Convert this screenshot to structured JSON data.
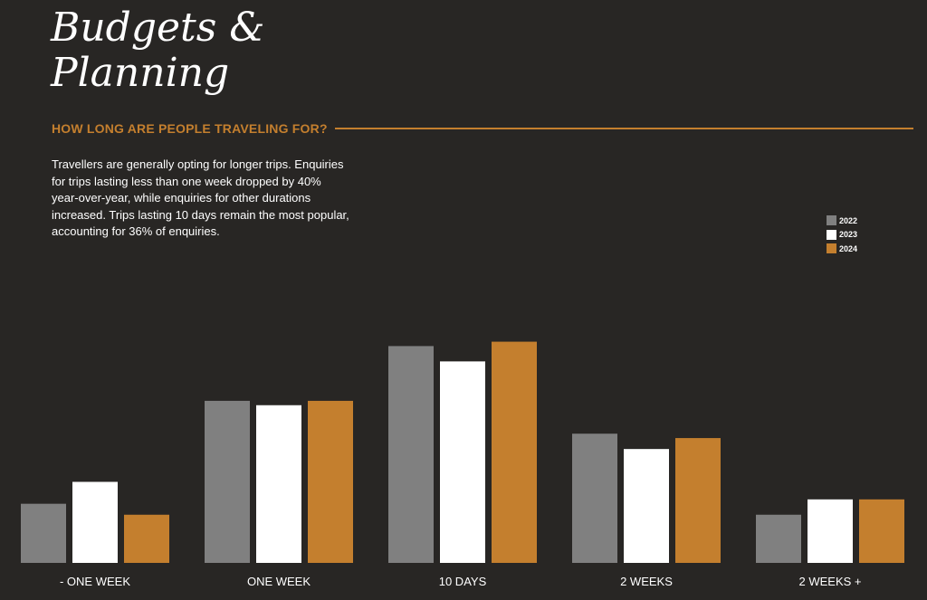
{
  "header": {
    "title_line1": "Budgets &",
    "title_line2": "Planning",
    "section_title": "HOW LONG ARE PEOPLE TRAVELING FOR?",
    "description": "Travellers are generally opting for longer trips. Enquiries for trips lasting less than one week dropped by 40% year-over-year, while enquiries for other durations increased. Trips lasting 10 days remain the most popular, accounting for 36% of enquiries."
  },
  "colors": {
    "background": "#282624",
    "accent": "#c47f2e"
  },
  "chart_data": {
    "type": "bar",
    "title": "",
    "xlabel": "",
    "ylabel": "",
    "grid": false,
    "legend_position": "top-right",
    "ylim": [
      0,
      100
    ],
    "categories": [
      "- ONE WEEK",
      "ONE WEEK",
      "10 DAYS",
      "2 WEEKS",
      "2 WEEKS +"
    ],
    "series": [
      {
        "name": "2022",
        "color": "#808080",
        "values": [
          27,
          74,
          99,
          59,
          22
        ]
      },
      {
        "name": "2023",
        "color": "#ffffff",
        "values": [
          37,
          72,
          92,
          52,
          29
        ]
      },
      {
        "name": "2024",
        "color": "#c47f2e",
        "values": [
          22,
          74,
          101,
          57,
          29
        ]
      }
    ]
  }
}
